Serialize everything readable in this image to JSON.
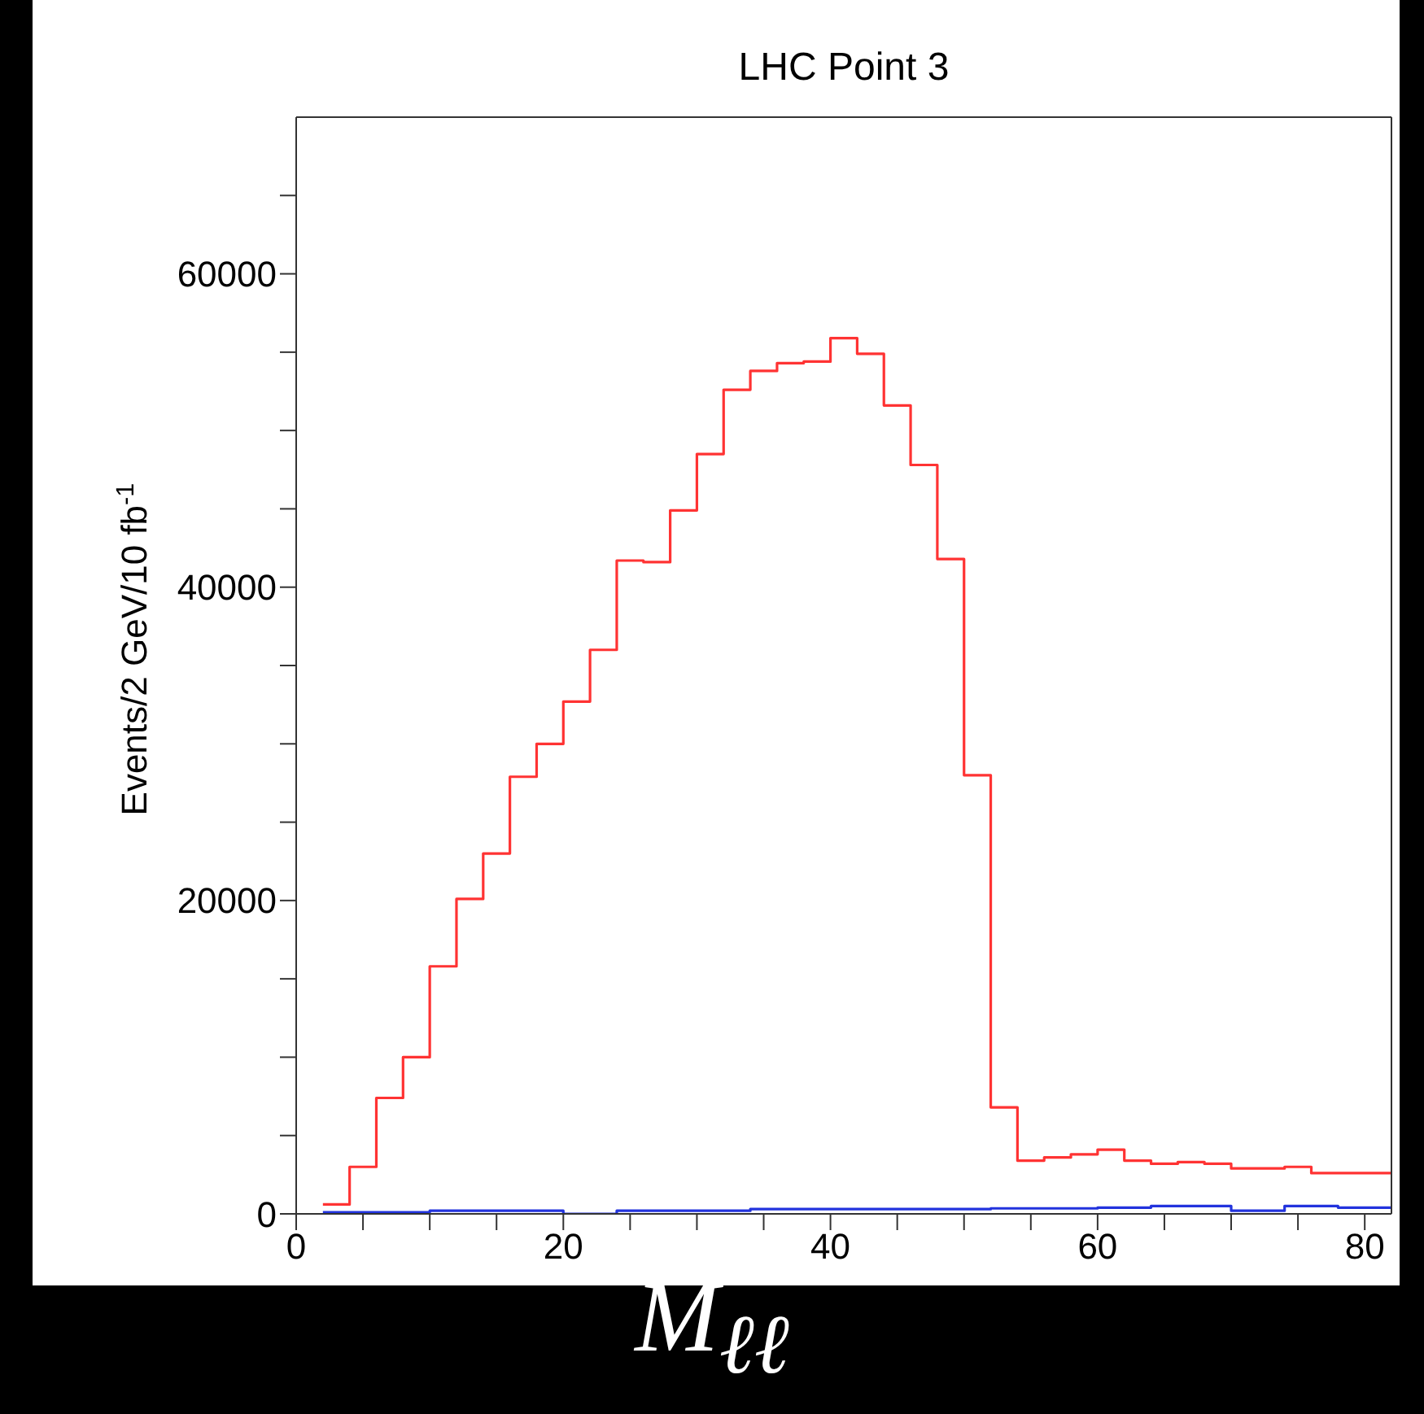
{
  "chart_data": {
    "type": "histogram",
    "title": "LHC Point 3",
    "xlabel": "M$_{ℓℓ}$",
    "ylabel": "Events/2 GeV/10 fb$^{-1}$",
    "bins": [
      2,
      4,
      6,
      8,
      10,
      12,
      14,
      16,
      18,
      20,
      22,
      24,
      26,
      28,
      30,
      32,
      34,
      36,
      38,
      40,
      42,
      44,
      46,
      48,
      50,
      52,
      54,
      56,
      58,
      60,
      62,
      64,
      66,
      68,
      70,
      72,
      74,
      76,
      78,
      80,
      82
    ],
    "series": [
      {
        "color": "#ff3333",
        "values": [
          600,
          3000,
          7400,
          10000,
          15800,
          20100,
          23000,
          27900,
          30000,
          32700,
          36000,
          41700,
          41600,
          44900,
          48500,
          52600,
          53800,
          54300,
          54400,
          55900,
          54900,
          51600,
          47800,
          41800,
          28000,
          6800,
          3400,
          3600,
          3800,
          4100,
          3400,
          3200,
          3300,
          3200,
          2900,
          2900,
          3000,
          2600,
          2600,
          2600
        ]
      },
      {
        "color": "#2233dd",
        "values": [
          100,
          100,
          100,
          100,
          200,
          200,
          200,
          200,
          200,
          0,
          0,
          200,
          200,
          200,
          200,
          200,
          300,
          300,
          300,
          300,
          300,
          300,
          300,
          300,
          300,
          350,
          350,
          350,
          350,
          400,
          400,
          500,
          500,
          500,
          200,
          200,
          500,
          500,
          400,
          400
        ]
      }
    ],
    "xlim": [
      0,
      82
    ],
    "xticks": [
      0,
      {
        "value": 5,
        "label": null
      },
      {
        "value": 10,
        "label": null
      },
      {
        "value": 15,
        "label": null
      },
      20,
      {
        "value": 25,
        "label": null
      },
      {
        "value": 30,
        "label": null
      },
      {
        "value": 35,
        "label": null
      },
      40,
      {
        "value": 45,
        "label": null
      },
      {
        "value": 50,
        "label": null
      },
      {
        "value": 55,
        "label": null
      },
      60,
      {
        "value": 65,
        "label": null
      },
      {
        "value": 70,
        "label": null
      },
      {
        "value": 75,
        "label": null
      },
      80
    ],
    "ylim": [
      0,
      70000
    ],
    "yticks": [
      0,
      {
        "value": 5000,
        "label": null
      },
      {
        "value": 10000,
        "label": null
      },
      {
        "value": 15000,
        "label": null
      },
      20000,
      {
        "value": 25000,
        "label": null
      },
      {
        "value": 30000,
        "label": null
      },
      {
        "value": 35000,
        "label": null
      },
      40000,
      {
        "value": 45000,
        "label": null
      },
      {
        "value": 50000,
        "label": null
      },
      {
        "value": 55000,
        "label": null
      },
      60000,
      {
        "value": 65000,
        "label": null
      }
    ],
    "grid": false
  }
}
